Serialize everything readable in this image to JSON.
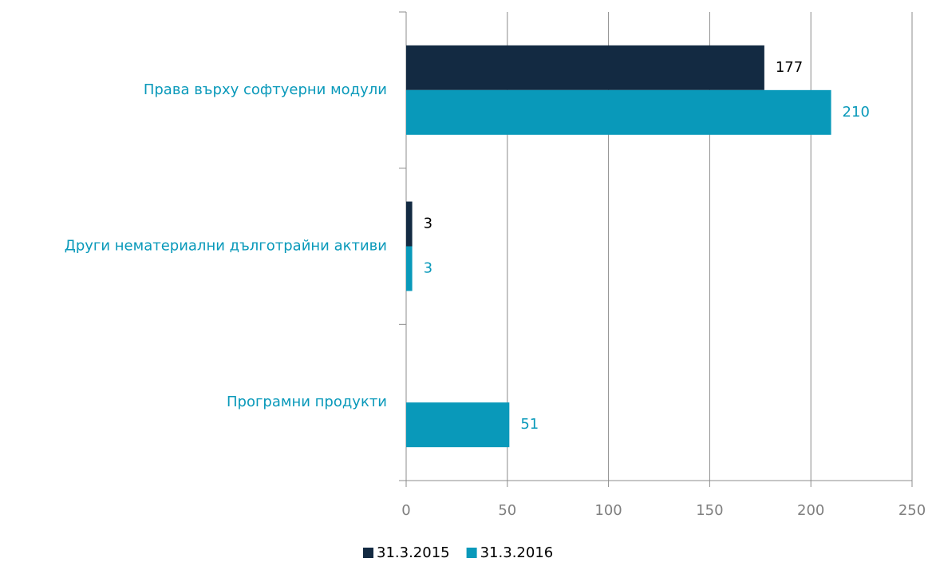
{
  "chart_data": {
    "type": "hbar",
    "categories": [
      "Права върху софтуерни модули",
      "Други нематериални дълготрайни активи",
      "Програмни продукти"
    ],
    "series": [
      {
        "name": "31.3.2015",
        "color": "#132a42",
        "label_color": "#000000",
        "values": [
          177,
          3,
          null
        ]
      },
      {
        "name": "31.3.2016",
        "color": "#0999ba",
        "label_color": "#0999ba",
        "values": [
          210,
          3,
          51
        ]
      }
    ],
    "xlim": [
      0,
      250
    ],
    "xticks": [
      0,
      50,
      100,
      150,
      200,
      250
    ],
    "grid": true,
    "category_color": "#0999ba",
    "tick_color": "#7f7f7f",
    "legend": "bottom"
  }
}
